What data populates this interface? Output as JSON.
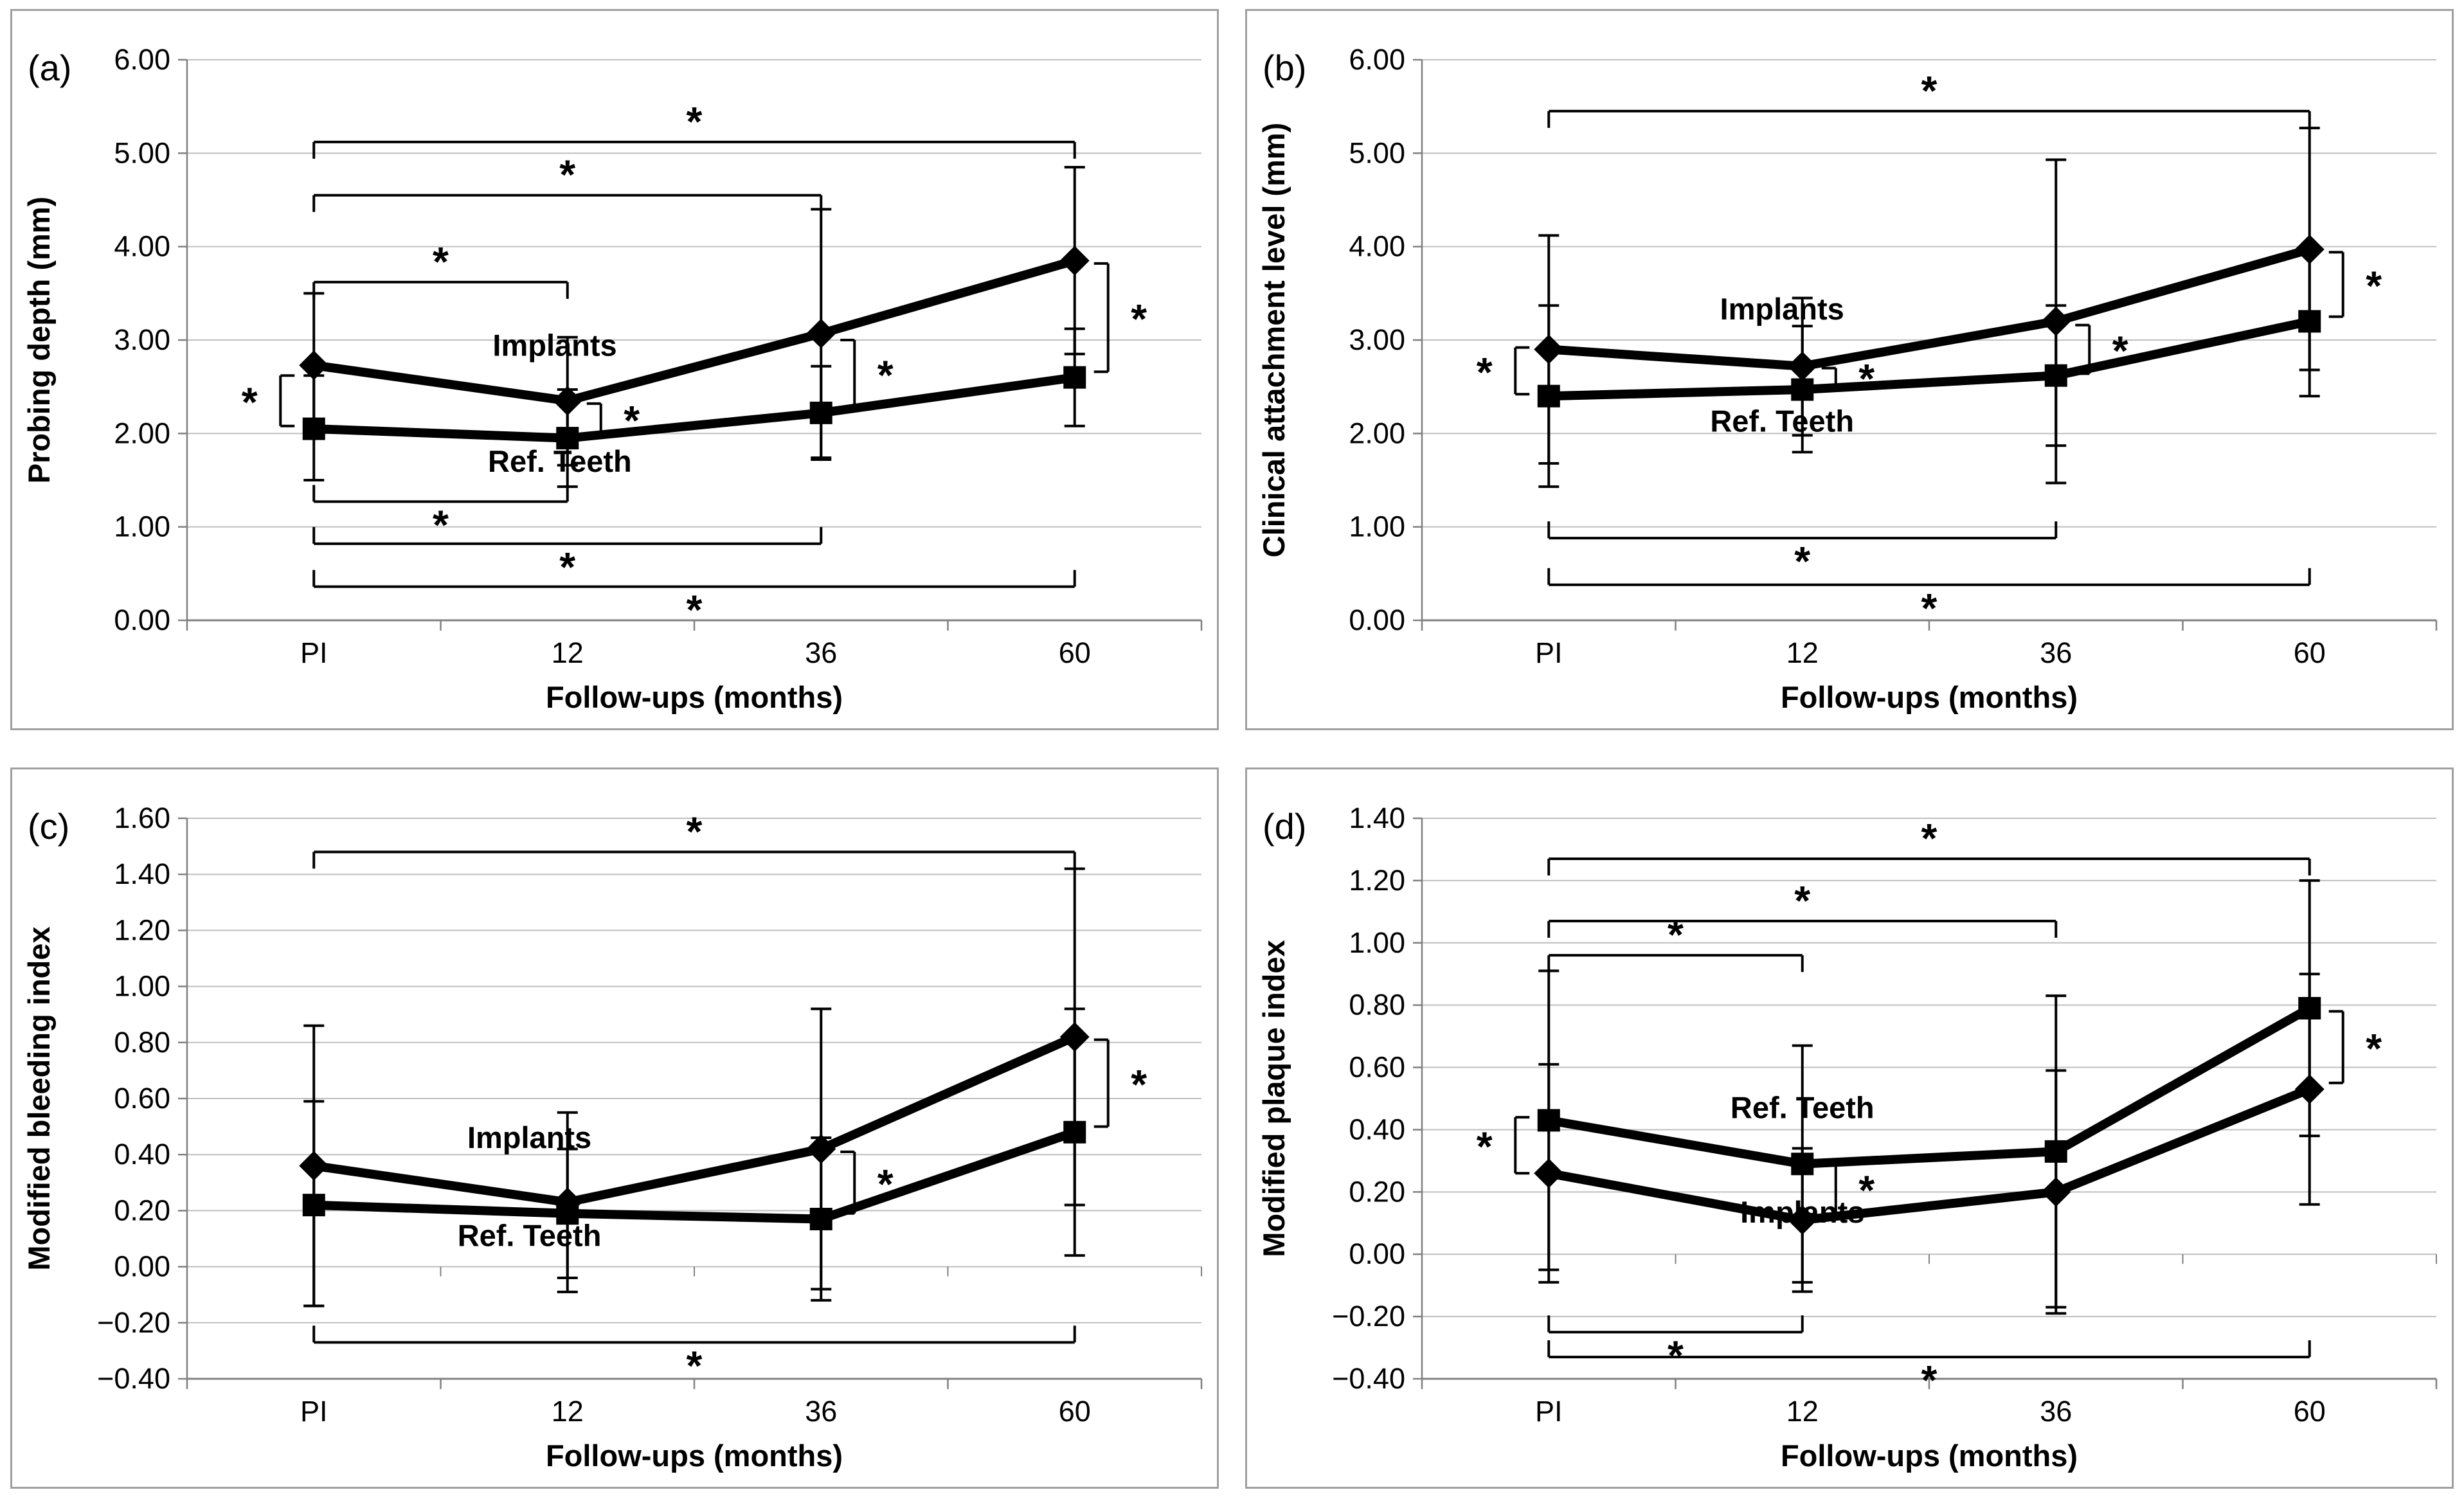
{
  "sig_symbol": "*",
  "colors": {
    "series": "#000000",
    "grid": "#bfbfbf",
    "axis": "#808080",
    "panel_border": "#a0a0a0"
  },
  "chart_data": [
    {
      "id": "a",
      "panel_label": "(a)",
      "type": "line",
      "title": "",
      "xlabel": "Follow-ups (months)",
      "ylabel": "Probing depth (mm)",
      "categories": [
        "PI",
        "12",
        "36",
        "60"
      ],
      "ylim": [
        0,
        6
      ],
      "ystep": 1,
      "ytick_labels": [
        "6.00",
        "5.00",
        "4.00",
        "3.00",
        "2.00",
        "1.00",
        "0.00"
      ],
      "zero_axis_ticks": false,
      "grid": true,
      "series": [
        {
          "name": "Implants",
          "marker": "diamond",
          "values": [
            2.73,
            2.35,
            3.07,
            3.85
          ],
          "err_up": [
            3.5,
            3.03,
            4.4,
            4.85
          ],
          "err_down": [
            1.98,
            1.66,
            1.74,
            2.85
          ]
        },
        {
          "name": "Ref. Teeth",
          "marker": "square",
          "values": [
            2.05,
            1.95,
            2.22,
            2.6
          ],
          "err_up": [
            2.62,
            2.47,
            2.72,
            3.12
          ],
          "err_down": [
            1.5,
            1.43,
            1.72,
            2.08
          ]
        }
      ],
      "labels": [
        {
          "text": "Implants",
          "cat": 0.95,
          "y": 2.94
        },
        {
          "text": "Ref. Teeth",
          "cat": 0.97,
          "y": 1.7
        }
      ],
      "h_brackets": [
        {
          "from": 0,
          "to": 1,
          "y": 3.62,
          "star": "above"
        },
        {
          "from": 0,
          "to": 2,
          "y": 4.55,
          "star": "above"
        },
        {
          "from": 0,
          "to": 3,
          "y": 5.12,
          "star": "above"
        },
        {
          "from": 0,
          "to": 1,
          "y": 1.27,
          "star": "below"
        },
        {
          "from": 0,
          "to": 2,
          "y": 0.82,
          "star": "below"
        },
        {
          "from": 0,
          "to": 3,
          "y": 0.36,
          "star": "below"
        }
      ],
      "v_brackets": [
        {
          "cat": 0,
          "y1": 2.62,
          "y2": 2.08,
          "side": "left"
        },
        {
          "cat": 1,
          "y1": 2.32,
          "y2": 1.99,
          "side": "right"
        },
        {
          "cat": 2,
          "y1": 3.0,
          "y2": 2.28,
          "side": "right"
        },
        {
          "cat": 3,
          "y1": 3.82,
          "y2": 2.66,
          "side": "right"
        }
      ]
    },
    {
      "id": "b",
      "panel_label": "(b)",
      "type": "line",
      "title": "",
      "xlabel": "Follow-ups (months)",
      "ylabel": "Clinical attachment level (mm)",
      "categories": [
        "PI",
        "12",
        "36",
        "60"
      ],
      "ylim": [
        0,
        6
      ],
      "ystep": 1,
      "ytick_labels": [
        "6.00",
        "5.00",
        "4.00",
        "3.00",
        "2.00",
        "1.00",
        "0.00"
      ],
      "zero_axis_ticks": false,
      "grid": true,
      "series": [
        {
          "name": "Implants",
          "marker": "diamond",
          "values": [
            2.9,
            2.72,
            3.2,
            3.97
          ],
          "err_up": [
            4.12,
            3.45,
            4.93,
            5.27
          ],
          "err_down": [
            1.68,
            1.98,
            1.47,
            2.68
          ]
        },
        {
          "name": "Ref. Teeth",
          "marker": "square",
          "values": [
            2.4,
            2.47,
            2.62,
            3.2
          ],
          "err_up": [
            3.37,
            3.15,
            3.37,
            4.0
          ],
          "err_down": [
            1.43,
            1.8,
            1.87,
            2.4
          ]
        }
      ],
      "labels": [
        {
          "text": "Implants",
          "cat": 0.92,
          "y": 3.33
        },
        {
          "text": "Ref. Teeth",
          "cat": 0.92,
          "y": 2.13
        }
      ],
      "h_brackets": [
        {
          "from": 0,
          "to": 3,
          "y": 5.45,
          "star": "above"
        },
        {
          "from": 0,
          "to": 2,
          "y": 0.88,
          "star": "below"
        },
        {
          "from": 0,
          "to": 3,
          "y": 0.38,
          "star": "below"
        }
      ],
      "v_brackets": [
        {
          "cat": 0,
          "y1": 2.92,
          "y2": 2.42,
          "side": "left"
        },
        {
          "cat": 1,
          "y1": 2.7,
          "y2": 2.5,
          "side": "right"
        },
        {
          "cat": 2,
          "y1": 3.16,
          "y2": 2.64,
          "side": "right"
        },
        {
          "cat": 3,
          "y1": 3.94,
          "y2": 3.25,
          "side": "right"
        }
      ]
    },
    {
      "id": "c",
      "panel_label": "(c)",
      "type": "line",
      "title": "",
      "xlabel": "Follow-ups (months)",
      "ylabel": "Modified bleeding index",
      "categories": [
        "PI",
        "12",
        "36",
        "60"
      ],
      "ylim": [
        -0.4,
        1.6
      ],
      "ystep": 0.2,
      "ytick_labels": [
        "1.60",
        "1.40",
        "1.20",
        "1.00",
        "0.80",
        "0.60",
        "0.40",
        "0.20",
        "0.00",
        "−0.20",
        "−0.40"
      ],
      "zero_axis_ticks": true,
      "grid": true,
      "series": [
        {
          "name": "Implants",
          "marker": "diamond",
          "values": [
            0.36,
            0.23,
            0.42,
            0.82
          ],
          "err_up": [
            0.86,
            0.55,
            0.92,
            1.42
          ],
          "err_down": [
            -0.14,
            -0.09,
            -0.08,
            0.22
          ]
        },
        {
          "name": "Ref. Teeth",
          "marker": "square",
          "values": [
            0.22,
            0.19,
            0.17,
            0.48
          ],
          "err_up": [
            0.59,
            0.42,
            0.46,
            0.92
          ],
          "err_down": [
            -0.14,
            -0.04,
            -0.12,
            0.04
          ]
        }
      ],
      "labels": [
        {
          "text": "Implants",
          "cat": 0.85,
          "y": 0.46
        },
        {
          "text": "Ref. Teeth",
          "cat": 0.85,
          "y": 0.11
        }
      ],
      "h_brackets": [
        {
          "from": 0,
          "to": 3,
          "y": 1.48,
          "star": "above"
        },
        {
          "from": 0,
          "to": 3,
          "y": -0.27,
          "star": "below"
        }
      ],
      "v_brackets": [
        {
          "cat": 2,
          "y1": 0.41,
          "y2": 0.19,
          "side": "right"
        },
        {
          "cat": 3,
          "y1": 0.81,
          "y2": 0.5,
          "side": "right"
        }
      ]
    },
    {
      "id": "d",
      "panel_label": "(d)",
      "type": "line",
      "title": "",
      "xlabel": "Follow-ups (months)",
      "ylabel": "Modified plaque index",
      "categories": [
        "PI",
        "12",
        "36",
        "60"
      ],
      "ylim": [
        -0.4,
        1.4
      ],
      "ystep": 0.2,
      "ytick_labels": [
        "1.40",
        "1.20",
        "1.00",
        "0.80",
        "0.60",
        "0.40",
        "0.20",
        "0.00",
        "−0.20",
        "−0.40"
      ],
      "zero_axis_ticks": true,
      "grid": true,
      "series": [
        {
          "name": "Ref. Teeth",
          "marker": "square",
          "values": [
            0.43,
            0.29,
            0.33,
            0.79
          ],
          "err_up": [
            0.91,
            0.67,
            0.83,
            1.2
          ],
          "err_down": [
            -0.05,
            -0.09,
            -0.17,
            0.38
          ]
        },
        {
          "name": "Implants",
          "marker": "diamond",
          "values": [
            0.26,
            0.11,
            0.2,
            0.53
          ],
          "err_up": [
            0.61,
            0.34,
            0.59,
            0.9
          ],
          "err_down": [
            -0.09,
            -0.12,
            -0.19,
            0.16
          ]
        }
      ],
      "labels": [
        {
          "text": "Ref. Teeth",
          "cat": 1.0,
          "y": 0.47
        },
        {
          "text": "Implants",
          "cat": 1.0,
          "y": 0.135
        }
      ],
      "h_brackets": [
        {
          "from": 0,
          "to": 1,
          "y": 0.96,
          "star": "above"
        },
        {
          "from": 0,
          "to": 2,
          "y": 1.07,
          "star": "above"
        },
        {
          "from": 0,
          "to": 3,
          "y": 1.27,
          "star": "above"
        },
        {
          "from": 0,
          "to": 1,
          "y": -0.25,
          "star": "below"
        },
        {
          "from": 0,
          "to": 3,
          "y": -0.33,
          "star": "below"
        }
      ],
      "v_brackets": [
        {
          "cat": 0,
          "y1": 0.44,
          "y2": 0.26,
          "side": "left"
        },
        {
          "cat": 1,
          "y1": 0.29,
          "y2": 0.13,
          "side": "right"
        },
        {
          "cat": 3,
          "y1": 0.78,
          "y2": 0.55,
          "side": "right"
        }
      ]
    }
  ]
}
